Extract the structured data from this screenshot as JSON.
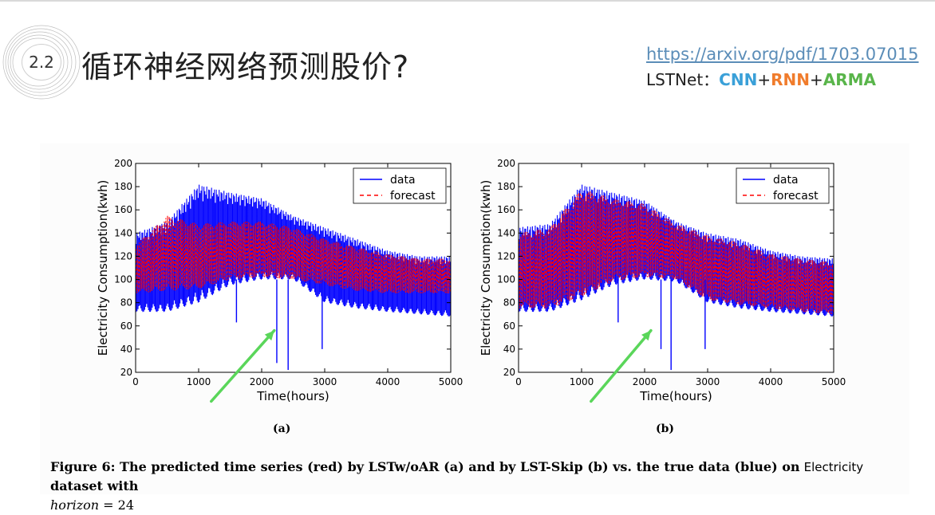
{
  "header": {
    "section_number": "2.2",
    "title": "循环神经网络预测股价?",
    "link": "https://arxiv.org/pdf/1703.07015",
    "model_prefix": "LSTNet：",
    "model_cnn": "CNN",
    "plus1": "+",
    "model_rnn": "RNN",
    "plus2": "+",
    "model_arma": "ARMA"
  },
  "colors": {
    "data": "#0000ff",
    "forecast": "#ff0000",
    "arrow": "#5ad65a",
    "cnn": "#3aa0d8",
    "rnn": "#f07c2c",
    "arma": "#59b54a"
  },
  "caption": {
    "p1": "Figure 6: The predicted time series (red) by LSTw/oAR (a) and by LST-Skip (b) vs. the true data (blue) on",
    "p2": "Electricity",
    "p3": "dataset with",
    "p4": "horizon",
    "p5": "= 24"
  },
  "chart_data": [
    {
      "id": "a",
      "type": "line",
      "panel_label": "(a)",
      "xlabel": "Time(hours)",
      "ylabel": "Electricity Consumption(kwh)",
      "xlim": [
        0,
        5000
      ],
      "ylim": [
        20,
        200
      ],
      "xticks": [
        0,
        1000,
        2000,
        3000,
        4000,
        5000
      ],
      "yticks": [
        20,
        40,
        60,
        80,
        100,
        120,
        140,
        160,
        180,
        200
      ],
      "legend_position": "top-right",
      "legend": [
        {
          "label": "data",
          "style": "solid",
          "color": "#0000ff"
        },
        {
          "label": "forecast",
          "style": "dashed",
          "color": "#ff0000"
        }
      ],
      "data_envelope": {
        "x": [
          0,
          500,
          1000,
          1500,
          2000,
          2500,
          3000,
          3500,
          4000,
          4500,
          5000
        ],
        "upper": [
          140,
          150,
          182,
          175,
          170,
          155,
          145,
          135,
          125,
          120,
          120
        ],
        "lower": [
          72,
          72,
          80,
          95,
          100,
          100,
          80,
          75,
          72,
          70,
          68
        ]
      },
      "forecast_envelope": {
        "x": [
          0,
          500,
          1000,
          1500,
          2000,
          2500,
          3000,
          3500,
          4000,
          4500,
          5000
        ],
        "upper": [
          130,
          155,
          148,
          150,
          150,
          145,
          135,
          128,
          122,
          118,
          118
        ],
        "lower": [
          88,
          90,
          92,
          100,
          102,
          100,
          95,
          90,
          88,
          88,
          88
        ]
      },
      "dips": [
        {
          "x": 1600,
          "y": 63
        },
        {
          "x": 2240,
          "y": 28
        },
        {
          "x": 2420,
          "y": 22
        },
        {
          "x": 2960,
          "y": 40
        }
      ],
      "annotation_arrow": {
        "from": [
          1200,
          -5
        ],
        "to": [
          2200,
          56
        ]
      }
    },
    {
      "id": "b",
      "type": "line",
      "panel_label": "(b)",
      "xlabel": "Time(hours)",
      "ylabel": "Electricity Consumption(kwh)",
      "xlim": [
        0,
        5000
      ],
      "ylim": [
        20,
        200
      ],
      "xticks": [
        0,
        1000,
        2000,
        3000,
        4000,
        5000
      ],
      "yticks": [
        20,
        40,
        60,
        80,
        100,
        120,
        140,
        160,
        180,
        200
      ],
      "legend_position": "top-right",
      "legend": [
        {
          "label": "data",
          "style": "solid",
          "color": "#0000ff"
        },
        {
          "label": "forecast",
          "style": "dashed",
          "color": "#ff0000"
        }
      ],
      "data_envelope": {
        "x": [
          0,
          500,
          1000,
          1500,
          2000,
          2500,
          3000,
          3500,
          4000,
          4500,
          5000
        ],
        "upper": [
          145,
          148,
          182,
          175,
          168,
          150,
          140,
          135,
          125,
          120,
          118
        ],
        "lower": [
          72,
          72,
          82,
          95,
          100,
          98,
          80,
          75,
          72,
          70,
          68
        ]
      },
      "forecast_envelope": {
        "x": [
          0,
          500,
          1000,
          1500,
          2000,
          2500,
          3000,
          3500,
          4000,
          4500,
          5000
        ],
        "upper": [
          140,
          145,
          178,
          170,
          165,
          148,
          138,
          132,
          122,
          118,
          115
        ],
        "lower": [
          75,
          75,
          85,
          98,
          102,
          100,
          82,
          78,
          75,
          72,
          70
        ]
      },
      "dips": [
        {
          "x": 1580,
          "y": 63
        },
        {
          "x": 2260,
          "y": 40
        },
        {
          "x": 2420,
          "y": 22
        },
        {
          "x": 2960,
          "y": 40
        }
      ],
      "annotation_arrow": {
        "from": [
          1150,
          -5
        ],
        "to": [
          2100,
          56
        ]
      }
    }
  ]
}
